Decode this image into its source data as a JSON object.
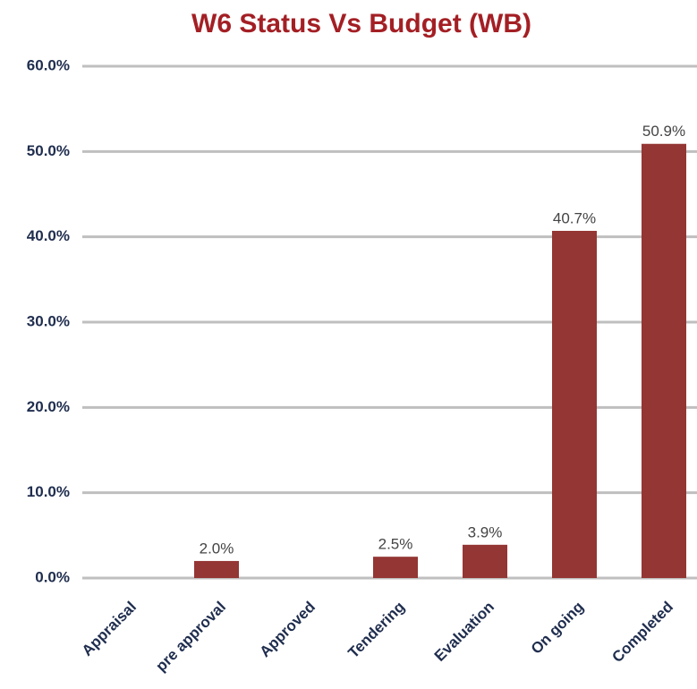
{
  "chart_data": {
    "type": "bar",
    "title": "W6 Status Vs Budget (WB)",
    "categories": [
      "Appraisal",
      "pre approval",
      "Approved",
      "Tendering",
      "Evaluation",
      "On going",
      "Completed"
    ],
    "values": [
      null,
      2.0,
      null,
      2.5,
      3.9,
      40.7,
      50.9
    ],
    "value_labels": [
      null,
      "2.0%",
      null,
      "2.5%",
      "3.9%",
      "40.7%",
      "50.9%"
    ],
    "color": "#943634",
    "ylim": [
      0,
      60
    ],
    "yticks": [
      {
        "value": 0,
        "label": "0.0%"
      },
      {
        "value": 10,
        "label": "10.0%"
      },
      {
        "value": 20,
        "label": "20.0%"
      },
      {
        "value": 30,
        "label": "30.0%"
      },
      {
        "value": 40,
        "label": "40.0%"
      },
      {
        "value": 50,
        "label": "50.0%"
      },
      {
        "value": 60,
        "label": "60.0%"
      }
    ],
    "grid": true
  }
}
